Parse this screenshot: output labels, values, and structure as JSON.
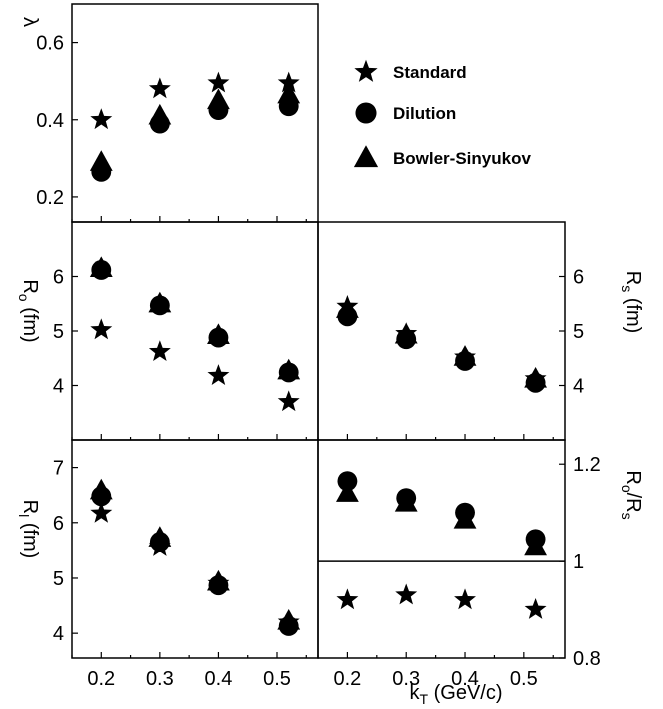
{
  "chart_data": {
    "type": "scatter",
    "xlabel": "k",
    "xlabel_sub": "T",
    "xlabel_unit": " (GeV/c)",
    "x_ticks": [
      "0.2",
      "0.3",
      "0.4",
      "0.5"
    ],
    "xlim": [
      0.15,
      0.57
    ],
    "legend": {
      "placement": "right of top panel",
      "entries": [
        {
          "label": "Standard",
          "marker": "star"
        },
        {
          "label": "Dilution",
          "marker": "circle"
        },
        {
          "label": "Bowler-Sinyukov",
          "marker": "triangle"
        }
      ]
    },
    "panels": [
      {
        "id": "lambda",
        "ylabel": "λ",
        "ylabel_sub": "",
        "ylabel_after": "",
        "ylabel_side": "left",
        "ylim": [
          0.135,
          0.7
        ],
        "yticks": [
          "0.2",
          "0.4",
          "0.6"
        ],
        "series": [
          {
            "marker": "star",
            "x": [
              0.2,
              0.3,
              0.4,
              0.52
            ],
            "y": [
              0.4,
              0.48,
              0.495,
              0.495
            ]
          },
          {
            "marker": "circle",
            "x": [
              0.2,
              0.3,
              0.4,
              0.52
            ],
            "y": [
              0.265,
              0.39,
              0.425,
              0.435
            ]
          },
          {
            "marker": "triangle",
            "x": [
              0.2,
              0.3,
              0.4,
              0.52
            ],
            "y": [
              0.29,
              0.41,
              0.45,
              0.465
            ]
          }
        ]
      },
      {
        "id": "ro",
        "ylabel": "R",
        "ylabel_sub": "o",
        "ylabel_after": " (fm)",
        "ylabel_side": "left",
        "ylim": [
          3.0,
          7.0
        ],
        "yticks": [
          "4",
          "5",
          "6"
        ],
        "series": [
          {
            "marker": "star",
            "x": [
              0.2,
              0.3,
              0.4,
              0.52
            ],
            "y": [
              5.02,
              4.62,
              4.18,
              3.7
            ]
          },
          {
            "marker": "circle",
            "x": [
              0.2,
              0.3,
              0.4,
              0.52
            ],
            "y": [
              6.12,
              5.47,
              4.88,
              4.24
            ]
          },
          {
            "marker": "triangle",
            "x": [
              0.2,
              0.3,
              0.4,
              0.52
            ],
            "y": [
              6.15,
              5.5,
              4.92,
              4.27
            ]
          }
        ]
      },
      {
        "id": "rs",
        "ylabel": "R",
        "ylabel_sub": "s",
        "ylabel_after": " (fm)",
        "ylabel_side": "right",
        "ylim": [
          3.0,
          7.0
        ],
        "yticks": [
          "4",
          "5",
          "6"
        ],
        "series": [
          {
            "marker": "star",
            "x": [
              0.2,
              0.3,
              0.4,
              0.52
            ],
            "y": [
              5.45,
              4.95,
              4.52,
              4.12
            ]
          },
          {
            "marker": "circle",
            "x": [
              0.2,
              0.3,
              0.4,
              0.52
            ],
            "y": [
              5.27,
              4.85,
              4.45,
              4.05
            ]
          },
          {
            "marker": "triangle",
            "x": [
              0.2,
              0.3,
              0.4,
              0.52
            ],
            "y": [
              5.4,
              4.93,
              4.52,
              4.12
            ]
          }
        ]
      },
      {
        "id": "rl",
        "ylabel": "R",
        "ylabel_sub": "l",
        "ylabel_after": " (fm)",
        "ylabel_side": "left",
        "ylim": [
          3.55,
          7.5
        ],
        "yticks": [
          "4",
          "5",
          "6",
          "7"
        ],
        "series": [
          {
            "marker": "star",
            "x": [
              0.2,
              0.3,
              0.4,
              0.52
            ],
            "y": [
              6.17,
              5.57,
              4.9,
              4.2
            ]
          },
          {
            "marker": "circle",
            "x": [
              0.2,
              0.3,
              0.4,
              0.52
            ],
            "y": [
              6.48,
              5.65,
              4.87,
              4.13
            ]
          },
          {
            "marker": "triangle",
            "x": [
              0.2,
              0.3,
              0.4,
              0.52
            ],
            "y": [
              6.58,
              5.72,
              4.93,
              4.22
            ]
          }
        ]
      },
      {
        "id": "ratio",
        "ylabel": "R",
        "ylabel_sub": "o",
        "ylabel_after": "/R",
        "ylabel_sub2": "s",
        "ylabel_side": "right",
        "ylim": [
          0.8,
          1.25
        ],
        "yticks": [
          "0.8",
          "1",
          "1.2"
        ],
        "reference_line": 1.0,
        "series": [
          {
            "marker": "star",
            "x": [
              0.2,
              0.3,
              0.4,
              0.52
            ],
            "y": [
              0.92,
              0.93,
              0.92,
              0.9
            ]
          },
          {
            "marker": "circle",
            "x": [
              0.2,
              0.3,
              0.4,
              0.52
            ],
            "y": [
              1.165,
              1.13,
              1.1,
              1.045
            ]
          },
          {
            "marker": "triangle",
            "x": [
              0.2,
              0.3,
              0.4,
              0.52
            ],
            "y": [
              1.14,
              1.12,
              1.085,
              1.03
            ]
          }
        ]
      }
    ]
  }
}
